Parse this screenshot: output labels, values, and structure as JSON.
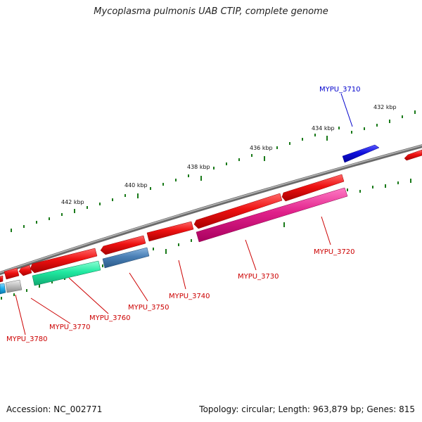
{
  "title": "Mycoplasma pulmonis UAB CTIP, complete genome",
  "footer": {
    "accession": "Accession: NC_002771",
    "summary": "Topology: circular; Length: 963,879 bp; Genes: 815"
  },
  "scale_labels": [
    "432 kbp",
    "434 kbp",
    "436 kbp",
    "438 kbp",
    "440 kbp",
    "442 kbp"
  ],
  "gene_labels": [
    {
      "text": "MYPU_3710",
      "color": "#0000cc"
    },
    {
      "text": "MYPU_3720",
      "color": "#cc0000"
    },
    {
      "text": "MYPU_3730",
      "color": "#cc0000"
    },
    {
      "text": "MYPU_3740",
      "color": "#cc0000"
    },
    {
      "text": "MYPU_3750",
      "color": "#cc0000"
    },
    {
      "text": "MYPU_3760",
      "color": "#cc0000"
    },
    {
      "text": "MYPU_3770",
      "color": "#cc0000"
    },
    {
      "text": "MYPU_3780",
      "color": "#cc0000"
    }
  ],
  "colors": {
    "backbone": "#808080",
    "tick": "#1a7a1a",
    "gene_red": "#ee1111",
    "gene_blue": "#1010dd",
    "gene_pink": "#e0208a",
    "gene_teal": "#20e8a0",
    "gene_steel": "#4a7fb5",
    "gene_grey": "#c0c0c0",
    "gene_cyan": "#20b0ee"
  }
}
